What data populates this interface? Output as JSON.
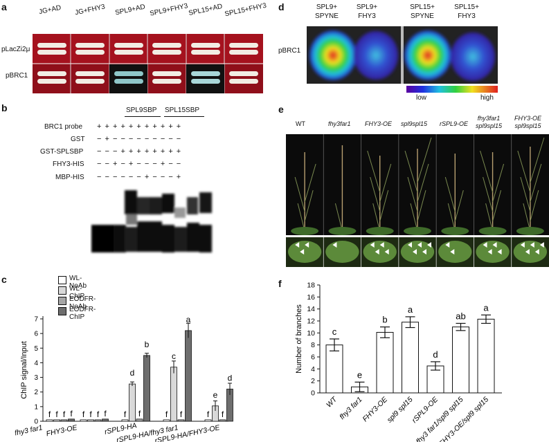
{
  "panels": {
    "a": {
      "label": "a",
      "columns": [
        "JG+AD",
        "JG+FHY3",
        "SPL9+AD",
        "SPL9+FHY3",
        "SPL15+AD",
        "SPL15+FHY3"
      ],
      "rows": [
        "pLacZi2μ",
        "pBRC1"
      ]
    },
    "b": {
      "label": "b",
      "groups": [
        "SPL9SBP",
        "SPL15SBP"
      ],
      "rows": [
        {
          "name": "BRC1 probe",
          "symbols": "+ + + + + + + + + + +"
        },
        {
          "name": "GST",
          "symbols": "− + − − − − − − − − −"
        },
        {
          "name": "GST-SPLSBP",
          "symbols": "− − − + + + + + + + +"
        },
        {
          "name": "FHY3-HIS",
          "symbols": "− − + − + − − − + − −"
        },
        {
          "name": "MBP-HIS",
          "symbols": "− − − − − − + − − − +"
        }
      ]
    },
    "c": {
      "label": "c",
      "legend": [
        "WL-NoAb",
        "WL-ChIP",
        "EODFR-NoAb",
        "EODFR-ChIP"
      ],
      "ylabel": "ChIP signal/Input",
      "groups": [
        "fhy3 far1",
        "FHY3-OE",
        "rSPL9-HA",
        "rSPL9-HA/fhy3 far1",
        "rSPL9-HA/FHY3-OE"
      ]
    },
    "d": {
      "label": "d",
      "headers": [
        "SPL9+\nSPYNE",
        "SPL9+\nFHY3",
        "SPL15+\nSPYNE",
        "SPL15+\nFHY3"
      ],
      "h1": "SPL9+",
      "h2": "SPYNE",
      "h3": "SPL9+",
      "h4": "FHY3",
      "h5": "SPL15+",
      "h6": "SPYNE",
      "h7": "SPL15+",
      "h8": "FHY3",
      "row_label": "pBRC1",
      "scale_low": "low",
      "scale_high": "high"
    },
    "e": {
      "label": "e",
      "genotypes": [
        "WT",
        "fhy3far1",
        "FHY3-OE",
        "spl9spl15",
        "rSPL9-OE",
        "fhy3far1\nspl9spl15",
        "FHY3-OE\nspl9spl15"
      ],
      "g6a": "fhy3far1",
      "g6b": "spl9spl15",
      "g7a": "FHY3-OE",
      "g7b": "spl9spl15"
    },
    "f": {
      "label": "f",
      "ylabel": "Number of branches"
    }
  },
  "chart_data": [
    {
      "type": "bar",
      "panel": "c",
      "ylabel": "ChIP signal/Input",
      "ylim": [
        0,
        7
      ],
      "yticks": [
        0,
        1,
        2,
        3,
        4,
        5,
        6,
        7
      ],
      "categories": [
        "fhy3 far1",
        "FHY3-OE",
        "rSPL9-HA",
        "rSPL9-HA/fhy3 far1",
        "rSPL9-HA/FHY3-OE"
      ],
      "series": [
        {
          "name": "WL-NoAb",
          "color": "#ffffff",
          "values": [
            0.1,
            0.1,
            0.1,
            0.1,
            0.1
          ],
          "letters": [
            "f",
            "f",
            "f",
            "f",
            "f"
          ]
        },
        {
          "name": "WL-ChIP",
          "color": "#d9d9d9",
          "values": [
            0.1,
            0.1,
            2.55,
            3.7,
            1.05
          ],
          "letters": [
            "f",
            "f",
            "d",
            "c",
            "e"
          ]
        },
        {
          "name": "EODFR-NoAb",
          "color": "#a6a6a6",
          "values": [
            0.1,
            0.1,
            0.15,
            0.1,
            0.1
          ],
          "letters": [
            "f",
            "f",
            "f",
            "f",
            "f"
          ]
        },
        {
          "name": "EODFR-ChIP",
          "color": "#6e6e6e",
          "values": [
            0.15,
            0.15,
            4.5,
            6.2,
            2.2
          ],
          "letters": [
            "f",
            "f",
            "b",
            "a",
            "d"
          ]
        }
      ]
    },
    {
      "type": "bar",
      "panel": "f",
      "ylabel": "Number of branches",
      "ylim": [
        0,
        18
      ],
      "yticks": [
        0,
        2,
        4,
        6,
        8,
        10,
        12,
        14,
        16,
        18
      ],
      "categories": [
        "WT",
        "fhy3 far1",
        "FHY3-OE",
        "spl9 spl15",
        "rSPL9-OE",
        "fhy3 far1/spl9 spl15",
        "FHY3-OE/spl9 spl15"
      ],
      "values": [
        8.0,
        1.0,
        10.1,
        11.8,
        4.5,
        11.0,
        12.3
      ],
      "errors": [
        1.0,
        0.8,
        0.9,
        0.9,
        0.7,
        0.6,
        0.7
      ],
      "letters": [
        "c",
        "e",
        "b",
        "a",
        "d",
        "ab",
        "a"
      ]
    }
  ]
}
